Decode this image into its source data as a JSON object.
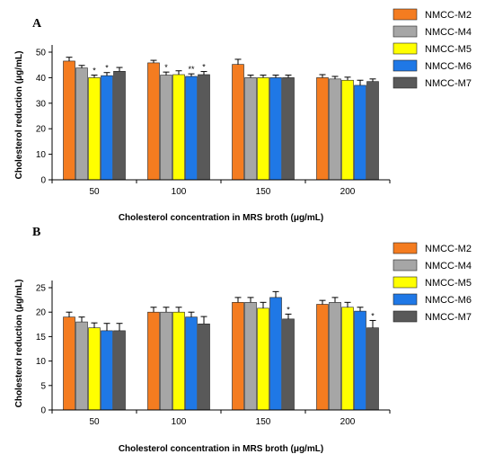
{
  "chart_data": [
    {
      "type": "bar",
      "panel": "A",
      "title": "",
      "xlabel": "Cholesterol concentration in MRS broth (μg/mL)",
      "ylabel": "Cholesterol reduction (μg/mL)",
      "ylim": [
        0,
        50
      ],
      "yticks": [
        "0",
        "10",
        "20",
        "30",
        "40",
        "50"
      ],
      "categories": [
        "50",
        "100",
        "150",
        "200"
      ],
      "legend_position": "right",
      "series": [
        {
          "name": "NMCC-M2",
          "color": "#f47c20",
          "values": [
            46.5,
            45.8,
            45.2,
            40.0
          ],
          "errors": [
            1.5,
            1.0,
            2.0,
            1.2
          ]
        },
        {
          "name": "NMCC-M4",
          "color": "#a6a6a6",
          "values": [
            43.8,
            41.0,
            40.0,
            39.5
          ],
          "errors": [
            1.0,
            1.2,
            1.0,
            1.0
          ]
        },
        {
          "name": "NMCC-M5",
          "color": "#ffff00",
          "values": [
            40.0,
            41.2,
            40.0,
            39.0
          ],
          "errors": [
            1.0,
            1.5,
            1.0,
            1.2
          ]
        },
        {
          "name": "NMCC-M6",
          "color": "#1f78e6",
          "values": [
            40.8,
            40.5,
            40.0,
            37.0
          ],
          "errors": [
            1.2,
            1.0,
            1.0,
            2.0
          ]
        },
        {
          "name": "NMCC-M7",
          "color": "#595959",
          "values": [
            42.5,
            41.2,
            40.0,
            38.5
          ],
          "errors": [
            1.5,
            1.2,
            1.0,
            1.0
          ]
        }
      ],
      "annotations": [
        {
          "category": "50",
          "series": "NMCC-M5",
          "text": "*"
        },
        {
          "category": "50",
          "series": "NMCC-M6",
          "text": "*"
        },
        {
          "category": "100",
          "series": "NMCC-M4",
          "text": "*"
        },
        {
          "category": "100",
          "series": "NMCC-M6",
          "text": "**"
        },
        {
          "category": "100",
          "series": "NMCC-M7",
          "text": "*"
        }
      ]
    },
    {
      "type": "bar",
      "panel": "B",
      "title": "",
      "xlabel": "Cholesterol concentration in MRS broth (μg/mL)",
      "ylabel": "Cholesterol reduction (μg/mL)",
      "ylim": [
        0,
        25
      ],
      "yticks": [
        "0",
        "5",
        "10",
        "15",
        "20",
        "25"
      ],
      "categories": [
        "50",
        "100",
        "150",
        "200"
      ],
      "legend_position": "right",
      "series": [
        {
          "name": "NMCC-M2",
          "color": "#f47c20",
          "values": [
            19.0,
            20.0,
            22.0,
            21.6
          ],
          "errors": [
            1.0,
            1.0,
            1.0,
            0.8
          ]
        },
        {
          "name": "NMCC-M4",
          "color": "#a6a6a6",
          "values": [
            18.0,
            20.0,
            22.0,
            22.0
          ],
          "errors": [
            1.0,
            1.0,
            1.0,
            1.0
          ]
        },
        {
          "name": "NMCC-M5",
          "color": "#ffff00",
          "values": [
            16.8,
            20.0,
            20.8,
            21.0
          ],
          "errors": [
            1.0,
            1.0,
            1.2,
            1.0
          ]
        },
        {
          "name": "NMCC-M6",
          "color": "#1f78e6",
          "values": [
            16.2,
            19.0,
            23.0,
            20.2
          ],
          "errors": [
            1.5,
            1.0,
            1.2,
            0.8
          ]
        },
        {
          "name": "NMCC-M7",
          "color": "#595959",
          "values": [
            16.2,
            17.6,
            18.6,
            16.8
          ],
          "errors": [
            1.5,
            1.5,
            1.0,
            1.5
          ]
        }
      ],
      "annotations": [
        {
          "category": "150",
          "series": "NMCC-M7",
          "text": "*"
        },
        {
          "category": "200",
          "series": "NMCC-M7",
          "text": "*"
        }
      ]
    }
  ]
}
